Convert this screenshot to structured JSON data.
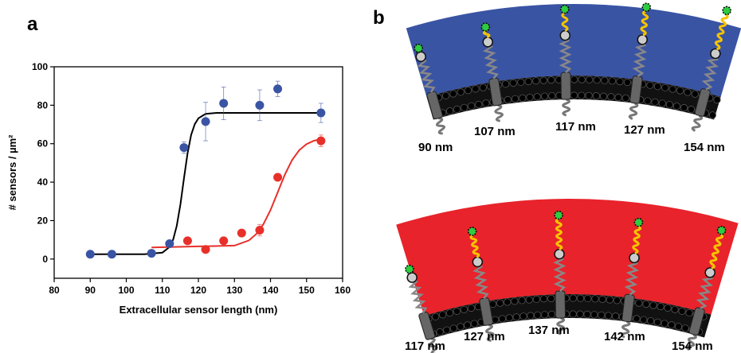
{
  "panels": [
    "a",
    "b"
  ],
  "chart_data": {
    "type": "scatter",
    "x_label": "Extracellular sensor length (nm)",
    "y_label": "# sensors / µm²",
    "xlim": [
      80,
      160
    ],
    "xticks": [
      80,
      90,
      100,
      110,
      120,
      130,
      140,
      150,
      160
    ],
    "ylim": [
      -10,
      100
    ],
    "yticks": [
      0,
      20,
      40,
      60,
      80,
      100
    ],
    "series": [
      {
        "color": "#3a54a4",
        "x": [
          90,
          96,
          107,
          112,
          116,
          122,
          127,
          137,
          142,
          154
        ],
        "values": [
          2.5,
          2.5,
          3,
          8,
          58,
          71.5,
          81,
          80,
          88.5,
          76
        ],
        "errors": [
          null,
          null,
          null,
          null,
          3,
          10,
          8.5,
          8,
          4,
          5
        ]
      },
      {
        "color": "#e8302a",
        "x": [
          117,
          122,
          127,
          132,
          137,
          142,
          154
        ],
        "values": [
          9.5,
          5,
          9.5,
          13.5,
          15,
          42.5,
          61.5
        ],
        "errors": [
          null,
          null,
          null,
          null,
          3,
          null,
          3
        ]
      }
    ],
    "fits": [
      {
        "color": "#000000",
        "x": [
          90,
          105,
          110,
          112,
          113,
          114,
          115,
          116,
          117,
          118,
          119,
          120,
          122,
          125,
          154
        ],
        "values": [
          2.5,
          2.5,
          3.3,
          6.3,
          10.1,
          17.2,
          28.3,
          42,
          55,
          64.6,
          70.2,
          73.2,
          75.5,
          76,
          76
        ]
      },
      {
        "color": "#e8302a",
        "x": [
          107,
          130,
          134,
          136,
          138,
          140,
          142,
          144,
          146,
          148,
          150,
          152,
          154
        ],
        "values": [
          6,
          7,
          9.7,
          12.9,
          18,
          25.5,
          34.75,
          44,
          51.5,
          56.7,
          59.8,
          61.5,
          62.5
        ]
      }
    ]
  },
  "diagram": {
    "blue_labels": [
      "90 nm",
      "107 nm",
      "117 nm",
      "127 nm",
      "154 nm"
    ],
    "red_labels": [
      "117 nm",
      "127 nm",
      "137 nm",
      "142 nm",
      "154 nm"
    ]
  }
}
